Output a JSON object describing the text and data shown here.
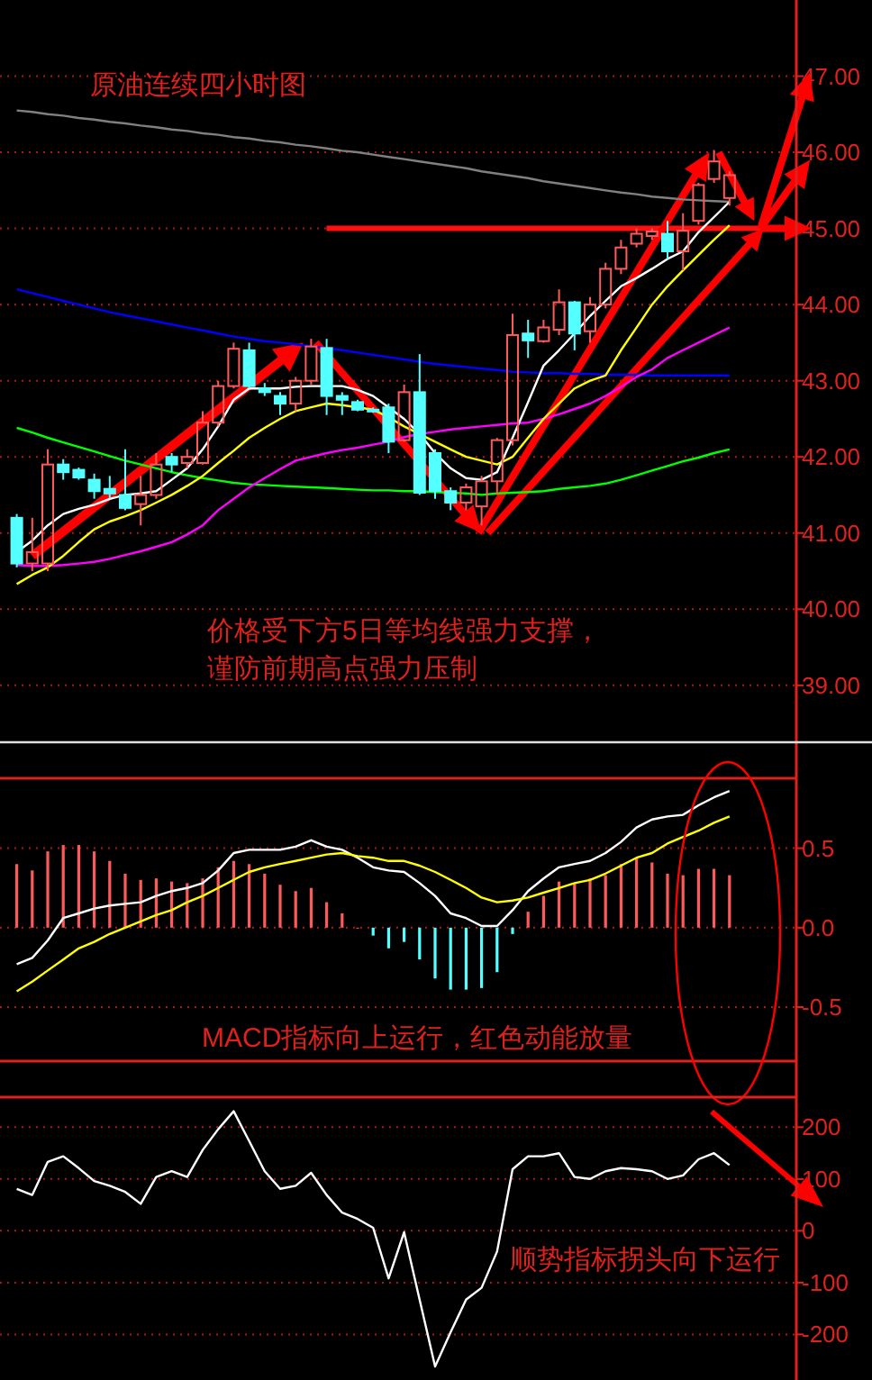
{
  "chart_data": [
    {
      "type": "candlestick",
      "tick_labels": "y",
      "grid": "y",
      "categories": [
        null,
        null,
        null,
        null,
        null,
        null,
        null,
        null,
        null,
        null,
        null,
        null,
        null,
        null,
        null,
        null,
        null,
        null,
        null,
        null,
        null,
        null,
        null,
        null,
        null,
        null,
        null,
        null,
        null,
        null,
        null,
        null,
        null,
        null,
        null,
        null,
        null,
        null,
        null,
        null,
        null,
        null,
        null,
        null,
        null,
        null,
        null
      ],
      "ylim": [
        38.3,
        48.0
      ],
      "yticks": [
        {
          "value": 39,
          "label": "39.00"
        },
        {
          "value": 40,
          "label": "40.00"
        },
        {
          "value": 41,
          "label": "41.00"
        },
        {
          "value": 42,
          "label": "42.00"
        },
        {
          "value": 43,
          "label": "43.00"
        },
        {
          "value": 44,
          "label": "44.00"
        },
        {
          "value": 45,
          "label": "45.00"
        },
        {
          "value": 46,
          "label": "46.00"
        },
        {
          "value": 47,
          "label": "47.00"
        }
      ],
      "ohlc": [
        [
          41.2,
          41.25,
          40.55,
          40.6
        ],
        [
          40.6,
          41.2,
          40.5,
          40.75
        ],
        [
          40.6,
          42.1,
          40.5,
          41.9
        ],
        [
          41.9,
          41.97,
          41.7,
          41.8
        ],
        [
          41.83,
          41.86,
          41.7,
          41.73
        ],
        [
          41.7,
          41.78,
          41.45,
          41.55
        ],
        [
          41.58,
          41.75,
          41.45,
          41.52
        ],
        [
          41.5,
          42.1,
          41.3,
          41.33
        ],
        [
          41.38,
          41.75,
          41.1,
          41.5
        ],
        [
          41.5,
          42.05,
          41.45,
          41.9
        ],
        [
          42.0,
          42.05,
          41.8,
          41.9
        ],
        [
          41.92,
          42.1,
          41.85,
          42.0
        ],
        [
          41.92,
          42.6,
          41.9,
          42.45
        ],
        [
          42.45,
          43.0,
          42.4,
          42.93
        ],
        [
          42.93,
          43.5,
          42.9,
          43.42
        ],
        [
          43.4,
          43.5,
          42.9,
          42.93
        ],
        [
          42.9,
          42.97,
          42.8,
          42.85
        ],
        [
          42.8,
          42.85,
          42.55,
          42.7
        ],
        [
          42.7,
          43.05,
          42.6,
          43.0
        ],
        [
          43.0,
          43.55,
          42.95,
          43.45
        ],
        [
          43.43,
          43.55,
          42.55,
          42.8
        ],
        [
          42.8,
          42.85,
          42.55,
          42.75
        ],
        [
          42.72,
          42.75,
          42.6,
          42.62
        ],
        [
          42.62,
          42.65,
          42.58,
          42.6
        ],
        [
          42.65,
          42.7,
          42.05,
          42.2
        ],
        [
          42.22,
          42.95,
          42.2,
          42.85
        ],
        [
          42.85,
          43.35,
          41.5,
          41.53
        ],
        [
          42.05,
          42.1,
          41.45,
          41.55
        ],
        [
          41.55,
          41.6,
          41.3,
          41.4
        ],
        [
          41.4,
          41.65,
          41.3,
          41.6
        ],
        [
          41.35,
          41.75,
          41.1,
          41.68
        ],
        [
          41.68,
          42.25,
          41.5,
          42.22
        ],
        [
          42.22,
          43.88,
          42.15,
          43.6
        ],
        [
          43.62,
          43.8,
          43.3,
          43.53
        ],
        [
          43.52,
          43.8,
          43.5,
          43.7
        ],
        [
          43.67,
          44.2,
          43.6,
          44.03
        ],
        [
          44.03,
          44.05,
          43.4,
          43.62
        ],
        [
          43.65,
          44.1,
          43.5,
          44.0
        ],
        [
          44.0,
          44.55,
          43.95,
          44.47
        ],
        [
          44.47,
          44.85,
          44.4,
          44.75
        ],
        [
          44.8,
          45.0,
          44.75,
          44.93
        ],
        [
          44.9,
          45.0,
          44.85,
          44.96
        ],
        [
          44.93,
          45.1,
          44.6,
          44.7
        ],
        [
          44.7,
          45.2,
          44.45,
          44.97
        ],
        [
          45.1,
          45.6,
          45.05,
          45.57
        ],
        [
          45.65,
          46.03,
          45.6,
          45.88
        ],
        [
          45.4,
          45.75,
          45.3,
          45.7
        ]
      ],
      "series": [
        {
          "type": "line",
          "color": "#808080",
          "values": [
            46.55,
            46.53,
            46.5,
            46.48,
            46.45,
            46.43,
            46.4,
            46.38,
            46.35,
            46.33,
            46.3,
            46.28,
            46.25,
            46.23,
            46.2,
            46.18,
            46.15,
            46.13,
            46.1,
            46.08,
            46.05,
            46.02,
            46.0,
            45.97,
            45.94,
            45.91,
            45.88,
            45.85,
            45.82,
            45.79,
            45.75,
            45.72,
            45.69,
            45.66,
            45.62,
            45.59,
            45.56,
            45.53,
            45.5,
            45.47,
            45.45,
            45.42,
            45.4,
            45.38,
            45.37,
            45.36,
            45.35
          ]
        },
        {
          "type": "line",
          "color": "#0000ff",
          "values": [
            44.2,
            44.15,
            44.1,
            44.05,
            44.0,
            43.95,
            43.9,
            43.86,
            43.82,
            43.78,
            43.74,
            43.7,
            43.66,
            43.62,
            43.58,
            43.55,
            43.52,
            43.5,
            43.48,
            43.45,
            43.43,
            43.4,
            43.37,
            43.34,
            43.31,
            43.28,
            43.25,
            43.22,
            43.2,
            43.18,
            43.16,
            43.14,
            43.12,
            43.11,
            43.1,
            43.1,
            43.09,
            43.09,
            43.08,
            43.08,
            43.08,
            43.07,
            43.07,
            43.07,
            43.07,
            43.07,
            43.07
          ]
        },
        {
          "type": "line",
          "color": "#00ff00",
          "values": [
            42.38,
            42.32,
            42.25,
            42.19,
            42.13,
            42.07,
            42.01,
            41.95,
            41.9,
            41.85,
            41.8,
            41.76,
            41.72,
            41.69,
            41.66,
            41.64,
            41.63,
            41.62,
            41.61,
            41.6,
            41.59,
            41.58,
            41.57,
            41.56,
            41.56,
            41.55,
            41.55,
            41.54,
            41.53,
            41.52,
            41.5,
            41.52,
            41.53,
            41.54,
            41.55,
            41.58,
            41.6,
            41.62,
            41.65,
            41.7,
            41.76,
            41.82,
            41.88,
            41.94,
            41.99,
            42.05,
            42.1
          ]
        },
        {
          "type": "line",
          "color": "#ff00ff",
          "values": [
            40.58,
            40.57,
            40.57,
            40.58,
            40.6,
            40.62,
            40.66,
            40.71,
            40.76,
            40.82,
            40.88,
            40.98,
            41.1,
            41.3,
            41.45,
            41.6,
            41.72,
            41.84,
            41.95,
            42.0,
            42.05,
            42.09,
            42.12,
            42.16,
            42.2,
            42.26,
            42.3,
            42.33,
            42.36,
            42.38,
            42.4,
            42.42,
            42.44,
            42.45,
            42.5,
            42.56,
            42.63,
            42.7,
            42.8,
            42.92,
            43.05,
            43.15,
            43.3,
            43.4,
            43.5,
            43.6,
            43.7
          ]
        },
        {
          "type": "line",
          "color": "#ffff00",
          "values": [
            40.33,
            40.45,
            40.55,
            40.7,
            40.88,
            41.05,
            41.15,
            41.22,
            41.3,
            41.4,
            41.5,
            41.62,
            41.75,
            41.92,
            42.08,
            42.25,
            42.38,
            42.5,
            42.6,
            42.65,
            42.7,
            42.68,
            42.65,
            42.62,
            42.52,
            42.4,
            42.3,
            42.2,
            42.1,
            42.0,
            41.95,
            41.9,
            42.0,
            42.25,
            42.5,
            42.7,
            42.9,
            43.0,
            43.07,
            43.4,
            43.7,
            44.0,
            44.24,
            44.45,
            44.65,
            44.85,
            45.04
          ]
        },
        {
          "type": "line",
          "color": "#ffffff",
          "values": [
            40.75,
            40.9,
            41.1,
            41.25,
            41.32,
            41.37,
            41.45,
            41.5,
            41.52,
            41.55,
            41.7,
            41.85,
            42.1,
            42.4,
            42.75,
            42.9,
            42.9,
            42.9,
            42.92,
            42.93,
            42.93,
            42.93,
            42.88,
            42.8,
            42.65,
            42.5,
            42.3,
            42.05,
            41.85,
            41.72,
            41.7,
            41.8,
            42.25,
            42.72,
            43.2,
            43.4,
            43.62,
            43.85,
            44.05,
            44.24,
            44.35,
            44.47,
            44.6,
            44.7,
            44.95,
            45.15,
            45.35
          ]
        }
      ],
      "ref_lines": [
        {
          "axis": "y",
          "value": 45,
          "color": "#ff1010"
        }
      ],
      "annotations": [
        "原油连续四小时图",
        "价格受下方5日等均线强力支撑，",
        "谨防前期高点强力压制"
      ]
    },
    {
      "type": "bar",
      "tick_labels": "y",
      "grid": "y",
      "categories": [
        null,
        null,
        null,
        null,
        null,
        null,
        null,
        null,
        null,
        null,
        null,
        null,
        null,
        null,
        null,
        null,
        null,
        null,
        null,
        null,
        null,
        null,
        null,
        null,
        null,
        null,
        null,
        null,
        null,
        null,
        null,
        null,
        null,
        null,
        null,
        null,
        null,
        null,
        null,
        null,
        null,
        null,
        null,
        null,
        null,
        null,
        null
      ],
      "ylim": [
        -0.84,
        0.94
      ],
      "yticks": [
        -0.5,
        {
          "value": 0,
          "label": "0.0"
        },
        0.5
      ],
      "series": [
        {
          "type": "bar",
          "values": [
            0.4,
            0.36,
            0.48,
            0.52,
            0.52,
            0.48,
            0.42,
            0.34,
            0.3,
            0.31,
            0.29,
            0.28,
            0.31,
            0.38,
            0.42,
            0.4,
            0.34,
            0.27,
            0.23,
            0.25,
            0.16,
            0.09,
            0,
            -0.05,
            -0.13,
            -0.09,
            -0.2,
            -0.32,
            -0.39,
            -0.39,
            -0.38,
            -0.28,
            -0.04,
            0.1,
            0.2,
            0.29,
            0.28,
            0.31,
            0.33,
            0.4,
            0.44,
            0.41,
            0.34,
            0.33,
            0.37,
            0.37,
            0.33
          ],
          "colors": [
            "#ff5a5a",
            "#ff5a5a",
            "#ff5a5a",
            "#ff5a5a",
            "#ff5a5a",
            "#ff5a5a",
            "#ff5a5a",
            "#ff5a5a",
            "#ff5a5a",
            "#ff5a5a",
            "#ff5a5a",
            "#ff5a5a",
            "#ff5a5a",
            "#ff5a5a",
            "#ff5a5a",
            "#ff5a5a",
            "#ff5a5a",
            "#ff5a5a",
            "#ff5a5a",
            "#ff5a5a",
            "#ff5a5a",
            "#ff5a5a",
            "#ff5a5a",
            "#54ffff",
            "#54ffff",
            "#54ffff",
            "#54ffff",
            "#54ffff",
            "#54ffff",
            "#54ffff",
            "#54ffff",
            "#54ffff",
            "#54ffff",
            "#ff5a5a",
            "#ff5a5a",
            "#ff5a5a",
            "#ff5a5a",
            "#ff5a5a",
            "#ff5a5a",
            "#ff5a5a",
            "#ff5a5a",
            "#ff5a5a",
            "#ff5a5a",
            "#ff5a5a",
            "#ff5a5a",
            "#ff5a5a",
            "#ff5a5a"
          ]
        },
        {
          "type": "line",
          "color": "#ffffff",
          "values": [
            -0.23,
            -0.19,
            -0.08,
            0.06,
            0.09,
            0.12,
            0.14,
            0.15,
            0.16,
            0.2,
            0.23,
            0.25,
            0.28,
            0.36,
            0.47,
            0.49,
            0.49,
            0.49,
            0.51,
            0.55,
            0.51,
            0.49,
            0.44,
            0.38,
            0.36,
            0.35,
            0.28,
            0.2,
            0.09,
            0.06,
            0.01,
            0.01,
            0.11,
            0.23,
            0.31,
            0.38,
            0.4,
            0.42,
            0.47,
            0.54,
            0.63,
            0.68,
            0.7,
            0.71,
            0.77,
            0.82,
            0.86
          ]
        },
        {
          "type": "line",
          "color": "#ffff00",
          "values": [
            -0.4,
            -0.34,
            -0.27,
            -0.2,
            -0.13,
            -0.09,
            -0.04,
            0,
            0.04,
            0.08,
            0.11,
            0.16,
            0.2,
            0.25,
            0.3,
            0.35,
            0.38,
            0.4,
            0.42,
            0.44,
            0.46,
            0.47,
            0.45,
            0.44,
            0.42,
            0.42,
            0.39,
            0.35,
            0.3,
            0.25,
            0.19,
            0.16,
            0.17,
            0.19,
            0.22,
            0.25,
            0.28,
            0.3,
            0.34,
            0.39,
            0.44,
            0.47,
            0.53,
            0.57,
            0.61,
            0.66,
            0.7
          ]
        }
      ],
      "annotations": [
        "MACD指标向上运行，红色动能放量"
      ]
    },
    {
      "type": "line",
      "tick_labels": "y",
      "grid": "y",
      "categories": [
        null,
        null,
        null,
        null,
        null,
        null,
        null,
        null,
        null,
        null,
        null,
        null,
        null,
        null,
        null,
        null,
        null,
        null,
        null,
        null,
        null,
        null,
        null,
        null,
        null,
        null,
        null,
        null,
        null,
        null,
        null,
        null,
        null,
        null,
        null,
        null,
        null,
        null,
        null,
        null,
        null,
        null,
        null,
        null,
        null,
        null,
        null
      ],
      "ylim": [
        -288,
        258
      ],
      "yticks": [
        -200,
        -100,
        0,
        100,
        200
      ],
      "series": [
        {
          "color": "#ffffff",
          "values": [
            81,
            69,
            133,
            144,
            121,
            96,
            87,
            75,
            52,
            104,
            115,
            104,
            156,
            196,
            231,
            173,
            115,
            81,
            87,
            112,
            69,
            35,
            23,
            6,
            -92,
            -3,
            -133,
            -262,
            -196,
            -133,
            -110,
            -40,
            119,
            144,
            144,
            150,
            104,
            100,
            115,
            121,
            119,
            115,
            100,
            107,
            138,
            150,
            127
          ]
        }
      ],
      "annotations": [
        "顺势指标拐头向下运行"
      ]
    }
  ]
}
